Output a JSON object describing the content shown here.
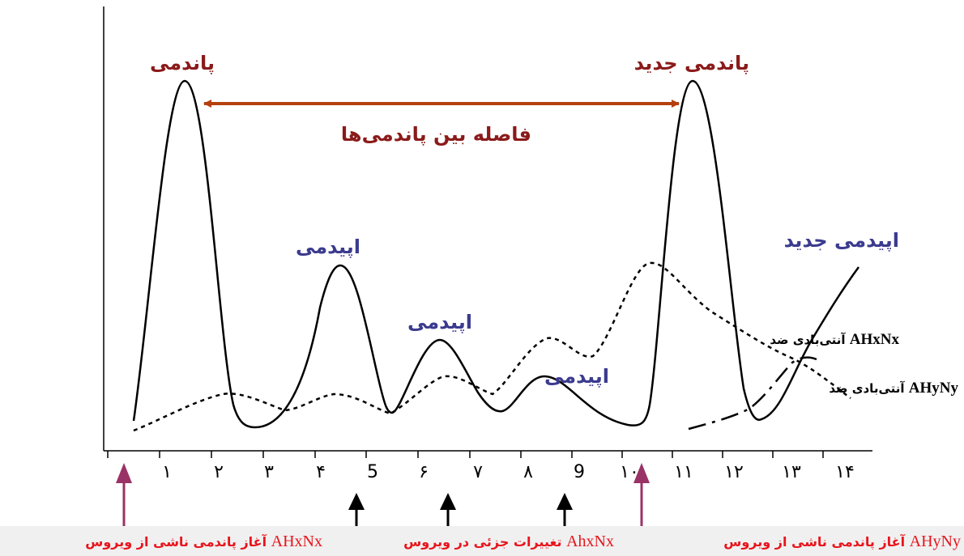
{
  "colors": {
    "pandemic": "#8b1a1a",
    "epidemic": "#3b3b8f",
    "interval_arrow": "#b5400e",
    "legend": "#e8141c",
    "pink_arrow": "#993366",
    "legend_bar": "#f0f0f0"
  },
  "labels": {
    "pandemic": "پاندمی",
    "new_pandemic": "پاندمی جدید",
    "interval": "فاصله بین پاندمی‌ها",
    "epidemic_1": "اپیدمی",
    "epidemic_2": "اپیدمی",
    "epidemic_3": "اپیدمی",
    "new_epidemic": "اپیدمی جدید"
  },
  "antibody": {
    "prefix_1": "آنتی‌بادی ضد ",
    "code_1": "AHxNx",
    "prefix_2": "آنتی‌بادی ضد ",
    "code_2": "AHyNy"
  },
  "x_ticks": [
    "۱",
    "۲",
    "۳",
    "۴",
    "5",
    "۶",
    "۷",
    "۸",
    "9",
    "۱۰",
    "۱۱",
    "۱۲",
    "۱۳",
    "۱۴"
  ],
  "legend": {
    "left_text": "آغاز پاندمی ناشی از ویروس ",
    "left_code": "AHxNx",
    "middle_text": "تغییرات جزئی در ویروس ",
    "middle_code": "AhxNx",
    "right_text": "آغاز پاندمی ناشی از ویروس ",
    "right_code": "AHyNy"
  }
}
